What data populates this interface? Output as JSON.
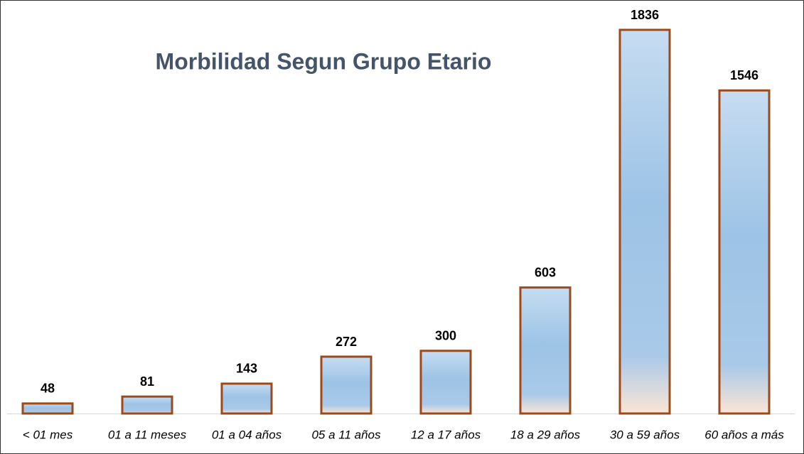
{
  "chart_data": {
    "type": "bar",
    "title": "Morbilidad Segun Grupo Etario",
    "categories": [
      "< 01 mes",
      "01 a 11 meses",
      "01 a 04 años",
      "05 a 11 años",
      "12 a 17 años",
      "18 a 29 años",
      "30 a 59 años",
      "60 años a más"
    ],
    "values": [
      48,
      81,
      143,
      272,
      300,
      603,
      1836,
      1546
    ],
    "color": "#9dc3e6",
    "edge_color": "#9c4a1a"
  }
}
